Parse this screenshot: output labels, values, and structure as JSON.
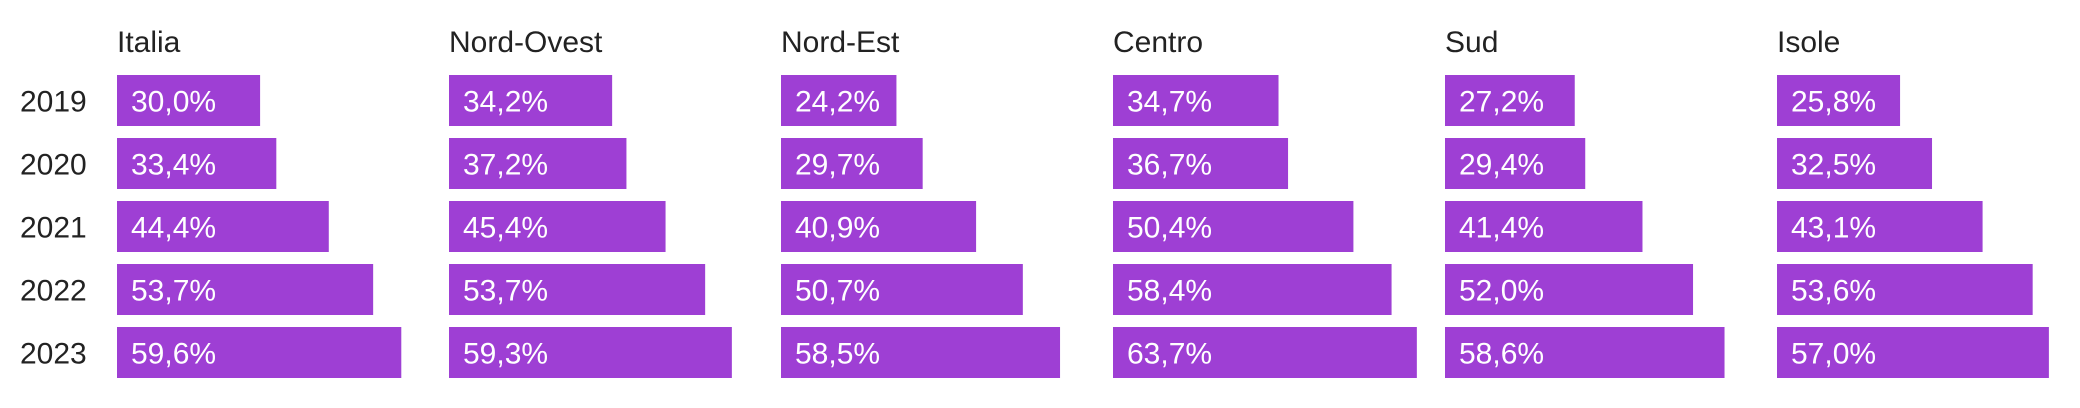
{
  "colors": {
    "bar": "#9e3fd4",
    "text": "#222222",
    "bar_label": "#ffffff"
  },
  "chart_data": {
    "type": "bar",
    "orientation": "horizontal",
    "layout": "small-multiples",
    "categories": [
      "2019",
      "2020",
      "2021",
      "2022",
      "2023"
    ],
    "xlim": [
      0,
      70
    ],
    "grid": false,
    "series": [
      {
        "name": "Italia",
        "values": [
          30.0,
          33.4,
          44.4,
          53.7,
          59.6
        ],
        "labels": [
          "30,0%",
          "33,4%",
          "44,4%",
          "53,7%",
          "59,6%"
        ]
      },
      {
        "name": "Nord-Ovest",
        "values": [
          34.2,
          37.2,
          45.4,
          53.7,
          59.3
        ],
        "labels": [
          "34,2%",
          "37,2%",
          "45,4%",
          "53,7%",
          "59,3%"
        ]
      },
      {
        "name": "Nord-Est",
        "values": [
          24.2,
          29.7,
          40.9,
          50.7,
          58.5
        ],
        "labels": [
          "24,2%",
          "29,7%",
          "40,9%",
          "50,7%",
          "58,5%"
        ]
      },
      {
        "name": "Centro",
        "values": [
          34.7,
          36.7,
          50.4,
          58.4,
          63.7
        ],
        "labels": [
          "34,7%",
          "36,7%",
          "50,4%",
          "58,4%",
          "63,7%"
        ]
      },
      {
        "name": "Sud",
        "values": [
          27.2,
          29.4,
          41.4,
          52.0,
          58.6
        ],
        "labels": [
          "27,2%",
          "29,4%",
          "41,4%",
          "52,0%",
          "58,6%"
        ]
      },
      {
        "name": "Isole",
        "values": [
          25.8,
          32.5,
          43.1,
          53.6,
          57.0
        ],
        "labels": [
          "25,8%",
          "32,5%",
          "43,1%",
          "53,6%",
          "57,0%"
        ]
      }
    ]
  }
}
